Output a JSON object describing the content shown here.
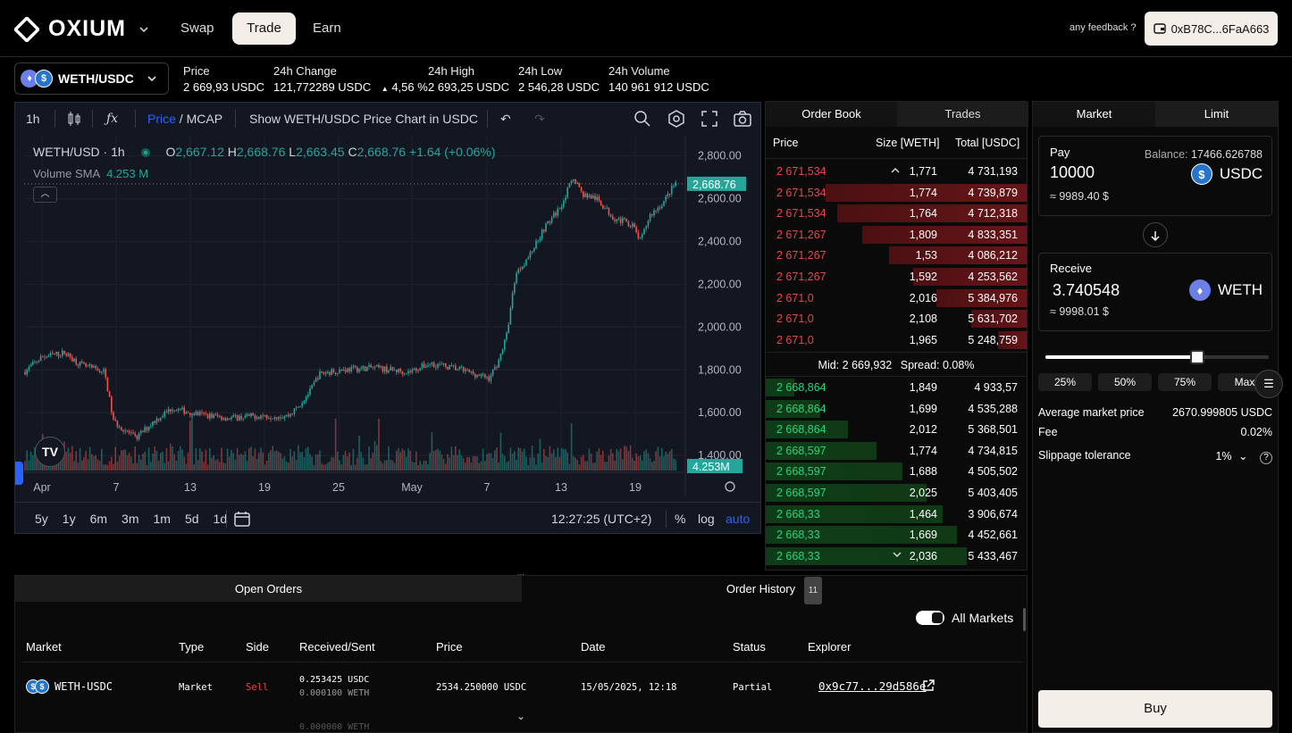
{
  "nav": {
    "brand": "OXIUM",
    "tabs": [
      "Swap",
      "Trade",
      "Earn"
    ],
    "active_tab": "Trade",
    "feedback": "any feedback ?",
    "wallet": "0xB78C...6FaA663"
  },
  "market": {
    "pair": "WETH/USDC",
    "stats": [
      {
        "label": "Price",
        "value": "2 669,93 USDC"
      },
      {
        "label": "24h Change",
        "value": "121,772289 USDC",
        "pct": "4,56 %"
      },
      {
        "label": "24h High",
        "value": "2 693,25 USDC"
      },
      {
        "label": "24h Low",
        "value": "2 546,28 USDC"
      },
      {
        "label": "24h Volume",
        "value": "140 961 912 USDC"
      }
    ]
  },
  "chart_toolbar": {
    "interval": "1h",
    "price": "Price",
    "mcap": "MCAP",
    "show_usdc": "Show WETH/USDC Price Chart in USDC"
  },
  "chart_legend": {
    "symbol": "WETH/USD · 1h",
    "o_label": "O",
    "o": "2,667.12",
    "h_label": "H",
    "h": "2,668.76",
    "l_label": "L",
    "l": "2,663.45",
    "c_label": "C",
    "c": "2,668.76",
    "change": "+1.64 (+0.06%)",
    "volume_label": "Volume",
    "sma_label": "SMA",
    "volume_value": "4.253 M"
  },
  "chart_data": {
    "type": "candlestick",
    "y_ticks": [
      "2,800.00",
      "2,600.00",
      "2,400.00",
      "2,200.00",
      "2,000.00",
      "1,800.00",
      "1,600.00",
      "1,400.00"
    ],
    "x_ticks": [
      "Apr",
      "7",
      "13",
      "19",
      "25",
      "May",
      "7",
      "13",
      "19"
    ],
    "ylim": [
      1330,
      2860
    ],
    "last_price": "2,668.76",
    "last_volume": "4.253M",
    "keypoints": [
      [
        0,
        1790
      ],
      [
        20,
        1860
      ],
      [
        45,
        1880
      ],
      [
        65,
        1820
      ],
      [
        90,
        1790
      ],
      [
        100,
        1560
      ],
      [
        125,
        1480
      ],
      [
        145,
        1560
      ],
      [
        165,
        1620
      ],
      [
        200,
        1590
      ],
      [
        230,
        1575
      ],
      [
        260,
        1585
      ],
      [
        295,
        1585
      ],
      [
        305,
        1620
      ],
      [
        320,
        1700
      ],
      [
        330,
        1780
      ],
      [
        355,
        1800
      ],
      [
        390,
        1810
      ],
      [
        430,
        1790
      ],
      [
        455,
        1830
      ],
      [
        490,
        1800
      ],
      [
        520,
        1760
      ],
      [
        530,
        1830
      ],
      [
        540,
        1960
      ],
      [
        550,
        2250
      ],
      [
        565,
        2330
      ],
      [
        580,
        2450
      ],
      [
        600,
        2560
      ],
      [
        615,
        2700
      ],
      [
        625,
        2620
      ],
      [
        640,
        2600
      ],
      [
        660,
        2510
      ],
      [
        680,
        2480
      ],
      [
        690,
        2400
      ],
      [
        700,
        2520
      ],
      [
        715,
        2580
      ],
      [
        730,
        2680
      ]
    ],
    "bottom_buttons": [
      "5y",
      "1y",
      "6m",
      "3m",
      "1m",
      "5d",
      "1d"
    ],
    "time": "12:27:25 (UTC+2)",
    "scale_buttons": [
      "%",
      "log",
      "auto"
    ]
  },
  "orderbook": {
    "tabs": [
      "Order Book",
      "Trades"
    ],
    "headers": [
      "Price",
      "Size [WETH]",
      "Total [USDC]"
    ],
    "asks": [
      {
        "price": "2 671,534",
        "size": "1,771",
        "total": "4 731,193",
        "depth": 0.0
      },
      {
        "price": "2 671,534",
        "size": "1,774",
        "total": "4 739,879",
        "depth": 0.98
      },
      {
        "price": "2 671,534",
        "size": "1,764",
        "total": "4 712,318",
        "depth": 0.92
      },
      {
        "price": "2 671,267",
        "size": "1,809",
        "total": "4 833,351",
        "depth": 0.8
      },
      {
        "price": "2 671,267",
        "size": "1,53",
        "total": "4 086,212",
        "depth": 0.67
      },
      {
        "price": "2 671,267",
        "size": "1,592",
        "total": "4 253,562",
        "depth": 0.55
      },
      {
        "price": "2 671,0",
        "size": "2,016",
        "total": "5 384,976",
        "depth": 0.44
      },
      {
        "price": "2 671,0",
        "size": "2,108",
        "total": "5 631,702",
        "depth": 0.27
      },
      {
        "price": "2 671,0",
        "size": "1,965",
        "total": "5 248,759",
        "depth": 0.14
      }
    ],
    "mid_label": "Mid:",
    "mid": "2 669,932",
    "spread_label": "Spread:",
    "spread": "0.08%",
    "bids": [
      {
        "price": "2 668,864",
        "size": "1,849",
        "total": "4 933,57",
        "depth": 0.14
      },
      {
        "price": "2 668,864",
        "size": "1,699",
        "total": "4 535,288",
        "depth": 0.27
      },
      {
        "price": "2 668,864",
        "size": "2,012",
        "total": "5 368,501",
        "depth": 0.41
      },
      {
        "price": "2 668,597",
        "size": "1,774",
        "total": "4 734,815",
        "depth": 0.55
      },
      {
        "price": "2 668,597",
        "size": "1,688",
        "total": "4 505,502",
        "depth": 0.68
      },
      {
        "price": "2 668,597",
        "size": "2,025",
        "total": "5 403,405",
        "depth": 0.8
      },
      {
        "price": "2 668,33",
        "size": "1,464",
        "total": "3 906,674",
        "depth": 0.88
      },
      {
        "price": "2 668,33",
        "size": "1,669",
        "total": "4 452,661",
        "depth": 0.95
      },
      {
        "price": "2 668,33",
        "size": "2,036",
        "total": "5 433,467",
        "depth": 1.0
      }
    ]
  },
  "swap": {
    "tabs": [
      "Market",
      "Limit"
    ],
    "pay_label": "Pay",
    "balance_label": "Balance:",
    "balance": "17466.626788",
    "pay_amount": "10000",
    "pay_token": "USDC",
    "pay_usd": "≈ 9989.40 $",
    "receive_label": "Receive",
    "receive_amount": "3.740548",
    "receive_token": "WETH",
    "receive_usd": "≈ 9998.01 $",
    "slider_value": 0.68,
    "percent_buttons": [
      "25%",
      "50%",
      "75%",
      "Max"
    ],
    "avg_label": "Average market price",
    "avg_value": "2670.999805 USDC",
    "fee_label": "Fee",
    "fee_value": "0.02%",
    "slippage_label": "Slippage tolerance",
    "slippage_value": "1%",
    "buy_label": "Buy"
  },
  "orders": {
    "tabs": [
      "Open Orders",
      "Order History"
    ],
    "history_count": "11",
    "all_markets": "All Markets",
    "headers": [
      "Market",
      "Type",
      "Side",
      "Received/Sent",
      "Price",
      "Date",
      "Status",
      "Explorer"
    ],
    "row": {
      "market": "WETH-USDC",
      "type": "Market",
      "side": "Sell",
      "received": "0.253425 USDC",
      "sent": "0.000100 WETH",
      "price": "2534.250000 USDC",
      "date": "15/05/2025, 12:18",
      "status": "Partial",
      "explorer": "0x9c77...29d586e"
    },
    "next_row_partial": "0.000000 WETH"
  }
}
